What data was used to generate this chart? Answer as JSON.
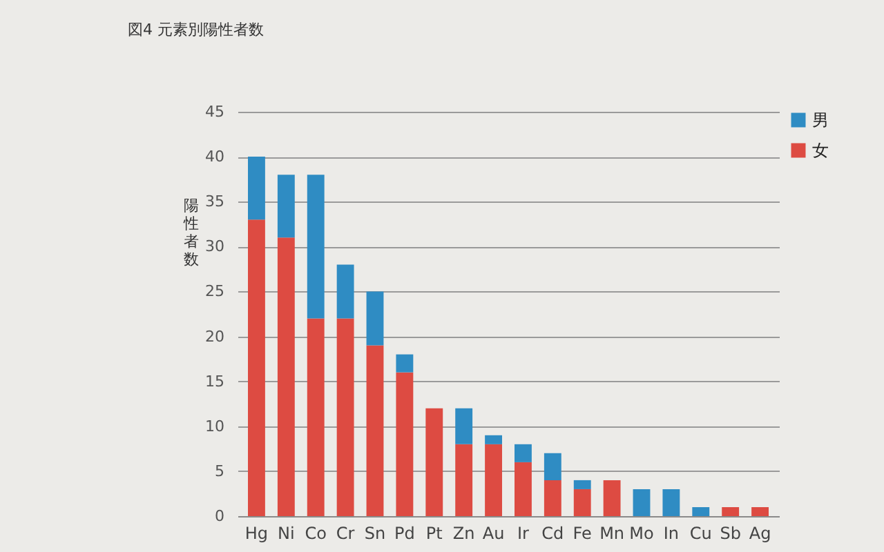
{
  "chart_data": {
    "type": "bar",
    "title": "図4 元素別陽性者数",
    "ylabel": "陽性者数",
    "categories": [
      "Hg",
      "Ni",
      "Co",
      "Cr",
      "Sn",
      "Pd",
      "Pt",
      "Zn",
      "Au",
      "Ir",
      "Cd",
      "Fe",
      "Mn",
      "Mo",
      "In",
      "Cu",
      "Sb",
      "Ag"
    ],
    "series": [
      {
        "name": "女",
        "color": "#dd4b42",
        "values": [
          33,
          31,
          22,
          22,
          19,
          16,
          12,
          8,
          8,
          6,
          4,
          3,
          4,
          0,
          0,
          0,
          1,
          1
        ]
      },
      {
        "name": "男",
        "color": "#2f8cc3",
        "values": [
          7,
          7,
          16,
          6,
          6,
          2,
          0,
          4,
          1,
          2,
          3,
          1,
          0,
          3,
          3,
          1,
          0,
          0
        ]
      }
    ],
    "stacked": true,
    "ylim": [
      0,
      45
    ],
    "yticks": [
      0,
      5,
      10,
      15,
      20,
      25,
      30,
      35,
      40,
      45
    ],
    "grid": "y",
    "legend": "top right"
  }
}
